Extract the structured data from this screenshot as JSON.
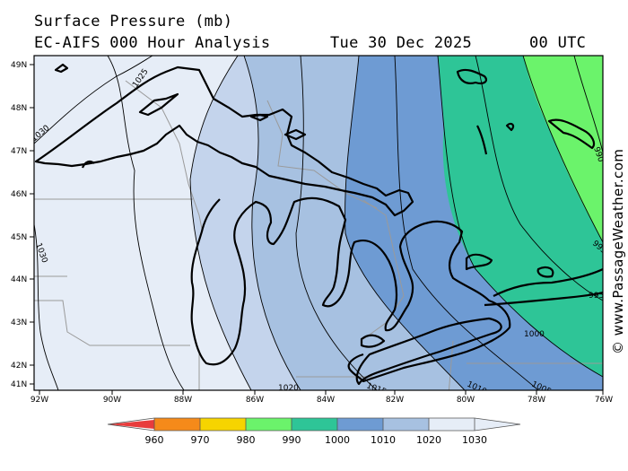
{
  "title": {
    "line1": "Surface Pressure (mb)",
    "model": "EC-AIFS 000 Hour Analysis",
    "date": "Tue 30 Dec 2025",
    "time": "00 UTC"
  },
  "map": {
    "lat_labels": [
      "49N",
      "48N",
      "47N",
      "46N",
      "45N",
      "44N",
      "43N",
      "42N",
      "41N"
    ],
    "lon_labels": [
      "92W",
      "90W",
      "88W",
      "86W",
      "84W",
      "82W",
      "80W",
      "78W",
      "76W"
    ],
    "isobar_labels": [
      "1025",
      "1030",
      "1030",
      "1025",
      "1020",
      "1015",
      "1010",
      "1005",
      "1000",
      "995",
      "995",
      "990"
    ],
    "pressure_colors": {
      "1025_1030": "#e6edf7",
      "1020_1025": "#c4d4ec",
      "1015_1020": "#a7c1e1",
      "1010_1015": "#6e9bd3",
      "1005_1010": "#2ec597",
      "995_1005": "#2ec597",
      "990_995": "#6bf36b"
    }
  },
  "legend": {
    "ticks": [
      "960",
      "970",
      "980",
      "990",
      "1000",
      "1010",
      "1020",
      "1030"
    ],
    "colors": [
      "#e83c3c",
      "#f58a1a",
      "#f6d400",
      "#6bf36b",
      "#2ec597",
      "#6e9bd3",
      "#a7c1e1",
      "#e6edf7"
    ]
  },
  "copyright": "© www.PassageWeather.com"
}
